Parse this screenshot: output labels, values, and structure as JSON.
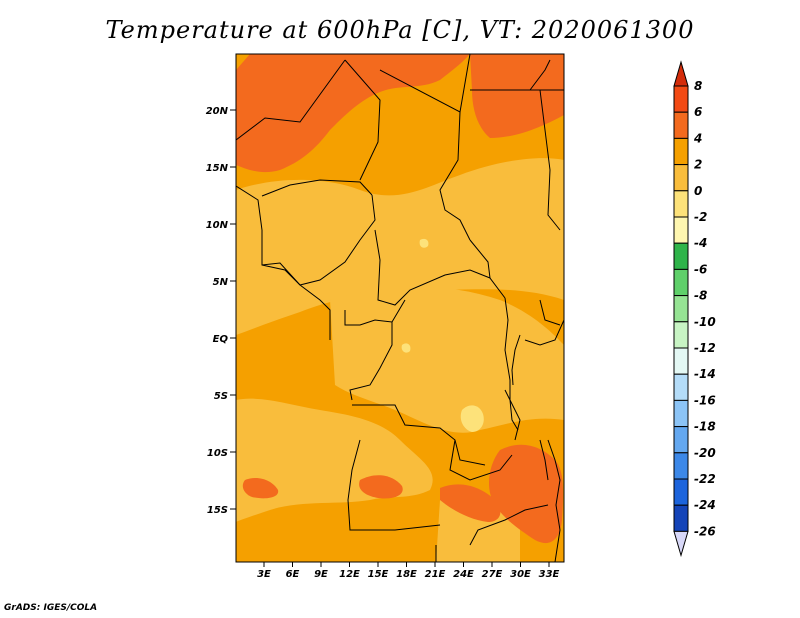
{
  "title": "Temperature at 600hPa [C], VT: 2020061300",
  "credit": "GrADS: IGES/COLA",
  "map": {
    "lat_labels": [
      "20N",
      "15N",
      "10N",
      "5N",
      "EQ",
      "5S",
      "10S",
      "15S"
    ],
    "lon_labels": [
      "3E",
      "6E",
      "9E",
      "12E",
      "15E",
      "18E",
      "21E",
      "24E",
      "27E",
      "30E",
      "33E"
    ],
    "background_color": "#f5a000",
    "region_colors": {
      "warm_4_6": "#f36a1e",
      "warm_2_4": "#f5a000",
      "mild_0_2": "#f9bd3c",
      "cool_m2_0": "#fde27a",
      "border": "#000000"
    }
  },
  "colorbar": {
    "labels": [
      "8",
      "6",
      "4",
      "2",
      "0",
      "-2",
      "-4",
      "-6",
      "-8",
      "-10",
      "-12",
      "-14",
      "-16",
      "-18",
      "-20",
      "-22",
      "-24",
      "-26"
    ],
    "colors": [
      "#d42c0a",
      "#f34a14",
      "#f36a1e",
      "#f5a000",
      "#f9bd3c",
      "#fde27a",
      "#fef6b0",
      "#2fb44a",
      "#5fd06a",
      "#96e494",
      "#c8f4c4",
      "#e4f8f4",
      "#b4dcf8",
      "#8cc4f6",
      "#64a8f0",
      "#3c88e8",
      "#1c64dc",
      "#1444b8",
      "#0c2488",
      "#d8d8f8"
    ]
  }
}
